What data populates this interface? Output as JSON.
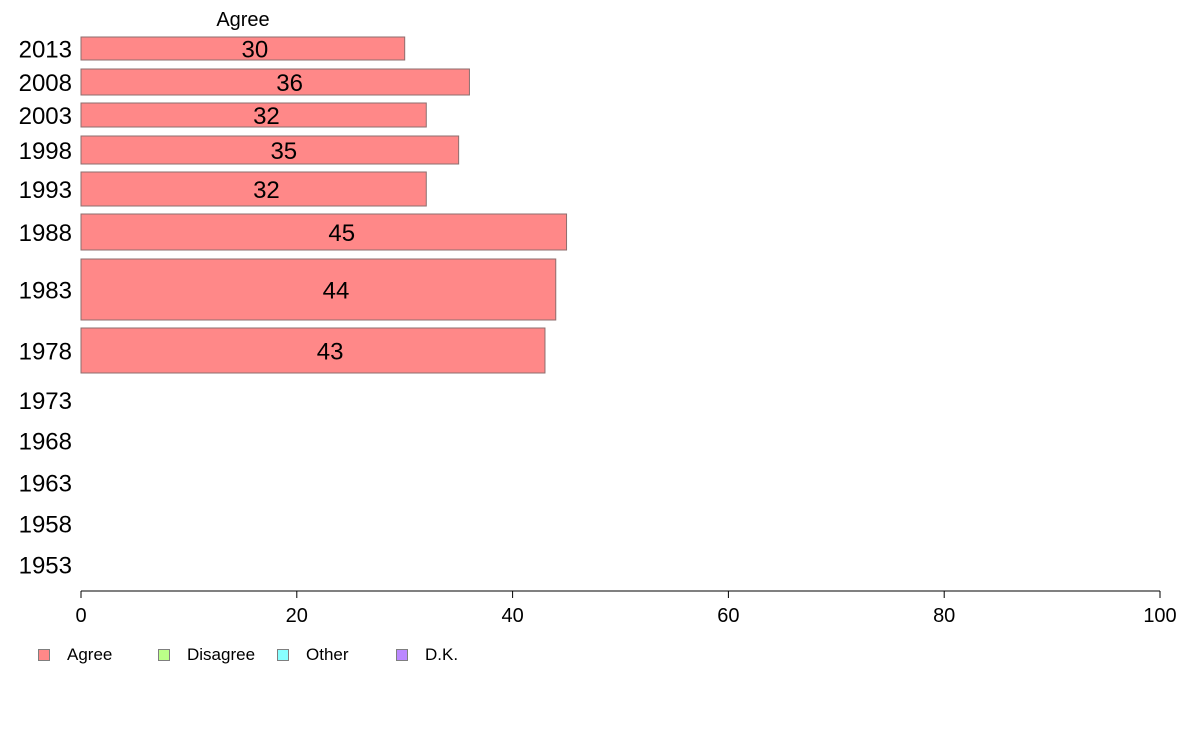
{
  "chart_data": {
    "type": "bar",
    "orientation": "horizontal",
    "stacked": true,
    "title": "",
    "xlabel": "",
    "ylabel": "",
    "column_header": "Agree",
    "xlim": [
      0,
      100
    ],
    "xticks": [
      0,
      20,
      40,
      60,
      80,
      100
    ],
    "categories": [
      "2013",
      "2008",
      "2003",
      "1998",
      "1993",
      "1988",
      "1983",
      "1978",
      "1973",
      "1968",
      "1963",
      "1958",
      "1953"
    ],
    "series": [
      {
        "name": "Agree",
        "color": "#ff8888",
        "values": [
          30,
          36,
          32,
          35,
          32,
          45,
          44,
          43,
          null,
          null,
          null,
          null,
          null
        ],
        "labels": [
          "30",
          "36",
          "32",
          "35",
          "32",
          "45",
          "44",
          "43",
          "",
          "",
          "",
          "",
          ""
        ]
      },
      {
        "name": "Disagree",
        "color": "#bbff88",
        "values": [
          null,
          null,
          null,
          null,
          null,
          null,
          null,
          null,
          null,
          null,
          null,
          null,
          null
        ]
      },
      {
        "name": "Other",
        "color": "#88ffff",
        "values": [
          null,
          null,
          null,
          null,
          null,
          null,
          null,
          null,
          null,
          null,
          null,
          null,
          null
        ]
      },
      {
        "name": "D.K.",
        "color": "#bb88ff",
        "values": [
          null,
          null,
          null,
          null,
          null,
          null,
          null,
          null,
          null,
          null,
          null,
          null,
          null
        ]
      }
    ],
    "legend_position": "bottom-left",
    "grid": false
  },
  "legend": [
    {
      "label": "Agree",
      "color": "#ff8888"
    },
    {
      "label": "Disagree",
      "color": "#bbff88"
    },
    {
      "label": "Other",
      "color": "#88ffff"
    },
    {
      "label": "D.K.",
      "color": "#bb88ff"
    }
  ]
}
